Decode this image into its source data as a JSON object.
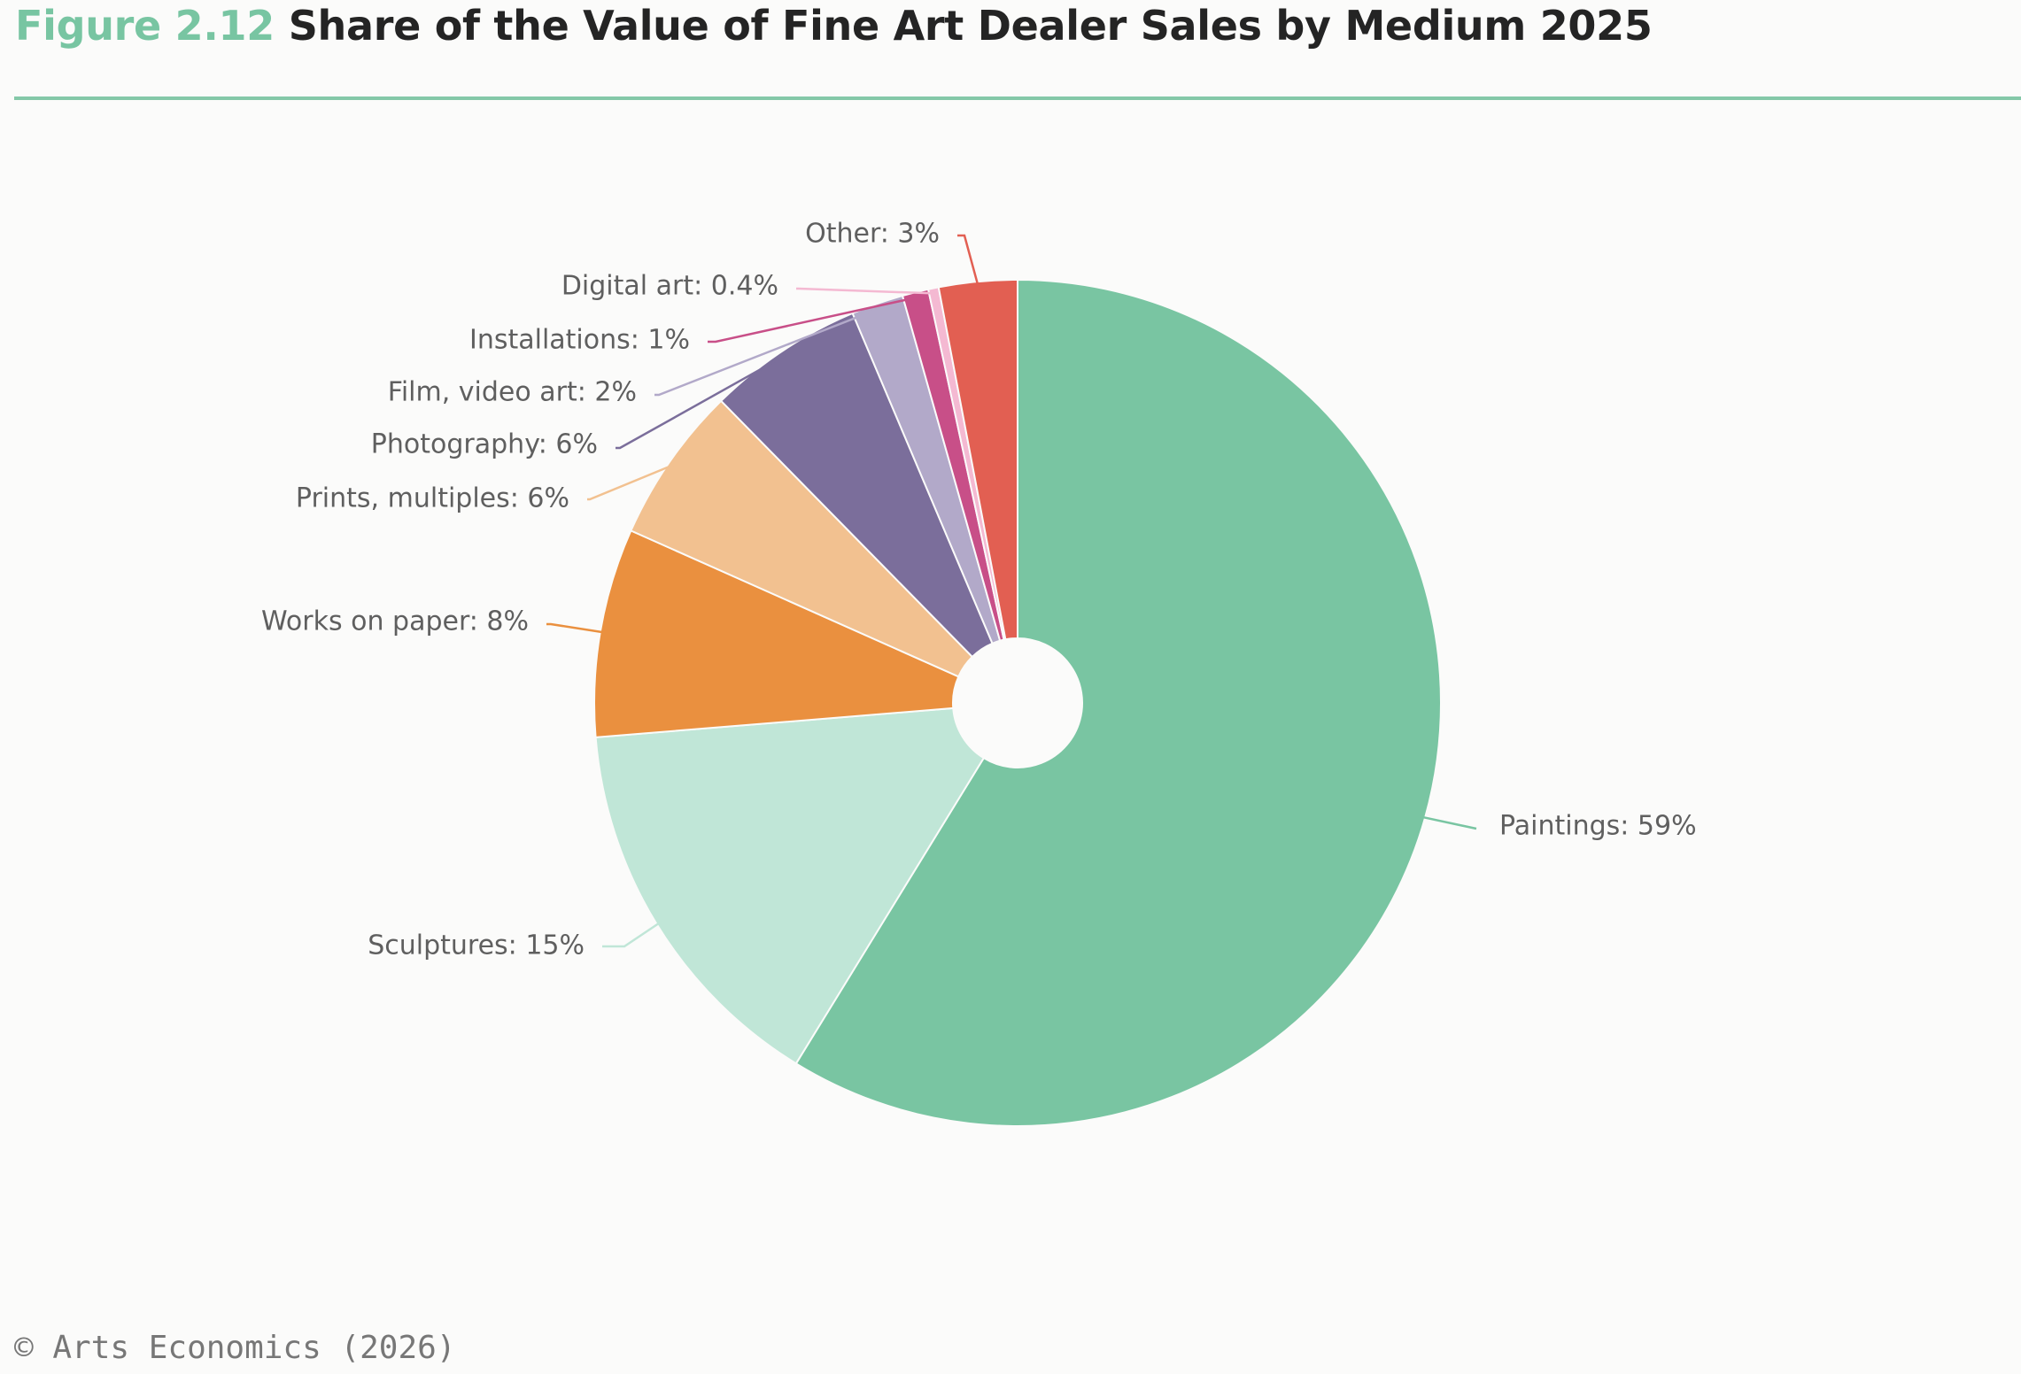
{
  "header": {
    "figure_number": "Figure 2.12",
    "title": "Share of the Value of Fine Art Dealer Sales by Medium 2025"
  },
  "chart_data": {
    "type": "pie",
    "title": "Share of the Value of Fine Art Dealer Sales by Medium 2025",
    "unit": "%",
    "start_angle_deg": 0,
    "direction": "clockwise",
    "categories": [
      "Paintings",
      "Sculptures",
      "Works on paper",
      "Prints, multiples",
      "Photography",
      "Film, video art",
      "Installations",
      "Digital art",
      "Other"
    ],
    "values": [
      59,
      15,
      8,
      6,
      6,
      2,
      1,
      0.4,
      3
    ],
    "labels": [
      "Paintings: 59%",
      "Sculptures: 15%",
      "Works on paper: 8%",
      "Prints, multiples: 6%",
      "Photography: 6%",
      "Film, video art: 2%",
      "Installations: 1%",
      "Digital art: 0.4%",
      "Other: 3%"
    ],
    "colors": [
      "#79c5a2",
      "#c0e6d7",
      "#ea903f",
      "#f2c190",
      "#7b6e9b",
      "#b2a9c9",
      "#c84f88",
      "#f4b9d2",
      "#e25f52"
    ]
  },
  "footer": {
    "copyright": "© Arts Economics (2026)"
  }
}
